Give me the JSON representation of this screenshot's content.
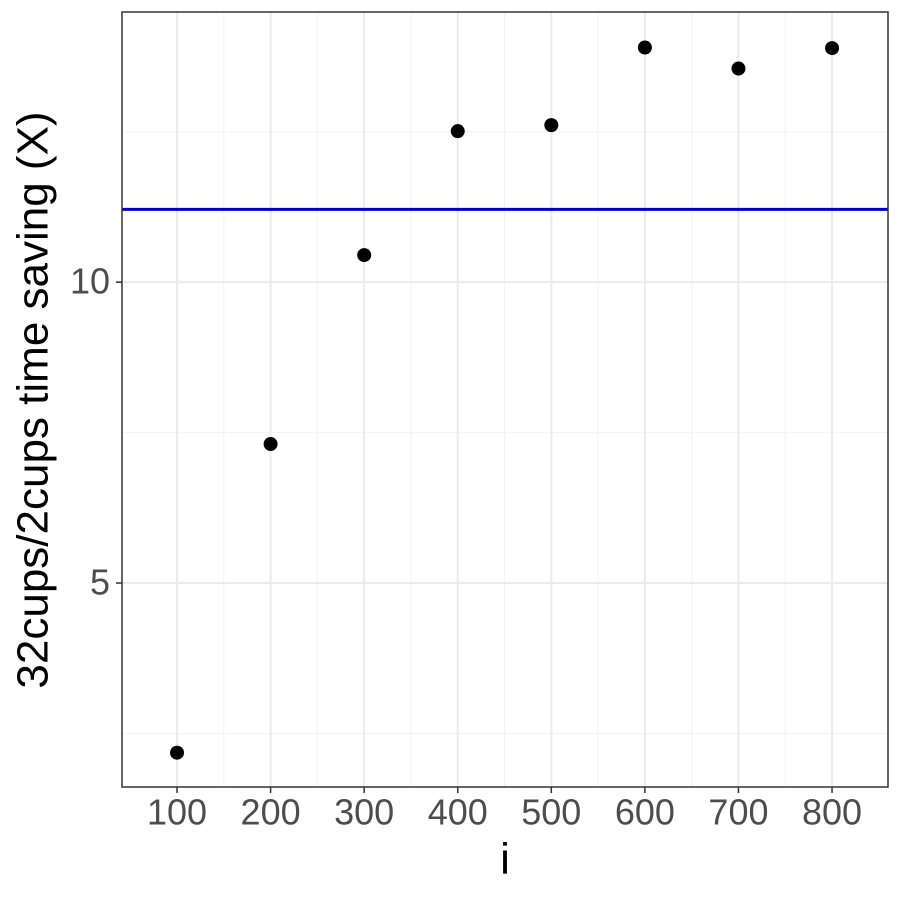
{
  "chart_data": {
    "type": "scatter",
    "x_label": "i",
    "y_label": "32cups/2cups time saving (X)",
    "series": [
      {
        "color": "#000000",
        "x": [
          100,
          200,
          300,
          400,
          500,
          600,
          700,
          800
        ],
        "values": [
          2.18,
          7.31,
          10.45,
          12.51,
          12.61,
          13.9,
          13.55,
          13.89
        ]
      }
    ],
    "hline": {
      "value": 11.21,
      "color": "#0000cc"
    },
    "xlim": [
      41.2,
      859.8
    ],
    "xticks": [
      100,
      200,
      300,
      400,
      500,
      600,
      700,
      800
    ],
    "x_minor_ticks": [
      150,
      250,
      350,
      450,
      550,
      650,
      750
    ],
    "ylim": [
      1.61,
      14.49
    ],
    "yticks": [
      5,
      10
    ],
    "y_minor_ticks": [
      2.5,
      7.5,
      12.5
    ],
    "grid": true
  }
}
